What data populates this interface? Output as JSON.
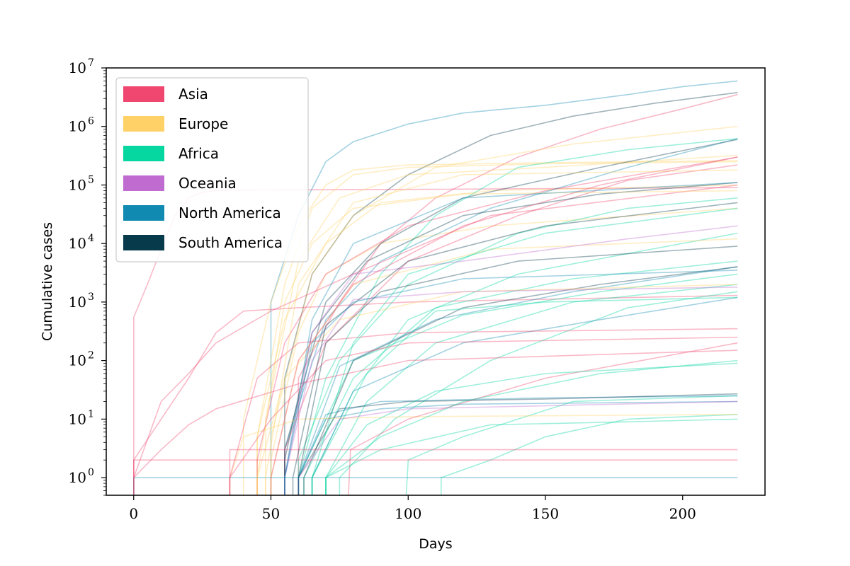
{
  "chart_data": {
    "type": "line",
    "title": "",
    "xlabel": "Days",
    "ylabel": "Cumulative cases",
    "xlim": [
      -10,
      230
    ],
    "ylim": [
      0.5,
      10000000
    ],
    "yscale": "log",
    "x_ticks": [
      {
        "value": 0,
        "label": "0"
      },
      {
        "value": 50,
        "label": "50"
      },
      {
        "value": 100,
        "label": "100"
      },
      {
        "value": 150,
        "label": "150"
      },
      {
        "value": 200,
        "label": "200"
      }
    ],
    "y_ticks": [
      {
        "value": 1,
        "base": "10",
        "exp": "0"
      },
      {
        "value": 10,
        "base": "10",
        "exp": "1"
      },
      {
        "value": 100,
        "base": "10",
        "exp": "2"
      },
      {
        "value": 1000,
        "base": "10",
        "exp": "3"
      },
      {
        "value": 10000,
        "base": "10",
        "exp": "4"
      },
      {
        "value": 100000,
        "base": "10",
        "exp": "5"
      },
      {
        "value": 1000000,
        "base": "10",
        "exp": "6"
      },
      {
        "value": 10000000,
        "base": "10",
        "exp": "7"
      }
    ],
    "grid": false,
    "legend_position": "top-left",
    "legend": [
      {
        "name": "Asia",
        "color": "#ef476f"
      },
      {
        "name": "Europe",
        "color": "#ffd166"
      },
      {
        "name": "Africa",
        "color": "#06d6a0"
      },
      {
        "name": "Oceania",
        "color": "#c06bd0"
      },
      {
        "name": "North America",
        "color": "#118ab2"
      },
      {
        "name": "South America",
        "color": "#073b4c"
      }
    ],
    "series": [
      {
        "continent": "North America",
        "x": [
          50,
          60,
          70,
          80,
          100,
          120,
          150,
          180,
          200,
          220
        ],
        "y": [
          1000,
          30000,
          250000,
          550000,
          1100000,
          1700000,
          2300000,
          3500000,
          4800000,
          6000000
        ]
      },
      {
        "continent": "South America",
        "x": [
          55,
          65,
          80,
          100,
          130,
          160,
          190,
          220
        ],
        "y": [
          50,
          3000,
          30000,
          150000,
          700000,
          1500000,
          2500000,
          3800000
        ]
      },
      {
        "continent": "Asia",
        "x": [
          60,
          75,
          90,
          110,
          140,
          170,
          200,
          220
        ],
        "y": [
          50,
          1000,
          10000,
          60000,
          300000,
          900000,
          2000000,
          3500000
        ]
      },
      {
        "continent": "Asia",
        "x": [
          0,
          5,
          10,
          15,
          20,
          25,
          30,
          45,
          100,
          220
        ],
        "y": [
          550,
          2000,
          8000,
          30000,
          60000,
          75000,
          80000,
          82000,
          84000,
          90000
        ]
      },
      {
        "continent": "Europe",
        "x": [
          40,
          50,
          60,
          70,
          80,
          100,
          150,
          220
        ],
        "y": [
          10,
          1000,
          20000,
          100000,
          180000,
          220000,
          240000,
          260000
        ]
      },
      {
        "continent": "Europe",
        "x": [
          45,
          55,
          65,
          80,
          100,
          150,
          220
        ],
        "y": [
          5,
          2000,
          40000,
          150000,
          200000,
          230000,
          250000
        ]
      },
      {
        "continent": "Europe",
        "x": [
          48,
          60,
          75,
          100,
          150,
          220
        ],
        "y": [
          10,
          5000,
          60000,
          150000,
          200000,
          320000
        ]
      },
      {
        "continent": "Europe",
        "x": [
          50,
          65,
          80,
          110,
          160,
          220
        ],
        "y": [
          5,
          3000,
          30000,
          200000,
          500000,
          1000000
        ]
      },
      {
        "continent": "Europe",
        "x": [
          45,
          55,
          70,
          90,
          130,
          220
        ],
        "y": [
          5,
          500,
          10000,
          50000,
          80000,
          100000
        ]
      },
      {
        "continent": "Europe",
        "x": [
          50,
          60,
          70,
          90,
          130,
          220
        ],
        "y": [
          2,
          300,
          3000,
          10000,
          20000,
          40000
        ]
      },
      {
        "continent": "Asia",
        "x": [
          45,
          55,
          70,
          100,
          150,
          220
        ],
        "y": [
          2,
          200,
          3000,
          20000,
          80000,
          300000
        ]
      },
      {
        "continent": "South America",
        "x": [
          55,
          70,
          90,
          120,
          170,
          220
        ],
        "y": [
          3,
          1000,
          10000,
          60000,
          200000,
          600000
        ]
      },
      {
        "continent": "North America",
        "x": [
          55,
          70,
          90,
          130,
          180,
          220
        ],
        "y": [
          3,
          500,
          5000,
          40000,
          200000,
          620000
        ]
      },
      {
        "continent": "Africa",
        "x": [
          60,
          70,
          90,
          110,
          140,
          180,
          220
        ],
        "y": [
          1,
          50,
          3000,
          30000,
          200000,
          400000,
          620000
        ]
      },
      {
        "continent": "Asia",
        "x": [
          55,
          70,
          100,
          140,
          180,
          220
        ],
        "y": [
          3,
          200,
          5000,
          30000,
          120000,
          220000
        ]
      },
      {
        "continent": "South America",
        "x": [
          55,
          65,
          85,
          120,
          170,
          220
        ],
        "y": [
          2,
          300,
          5000,
          30000,
          70000,
          110000
        ]
      },
      {
        "continent": "Asia",
        "x": [
          0,
          10,
          20,
          30,
          50,
          80,
          130,
          220
        ],
        "y": [
          1,
          20,
          60,
          200,
          700,
          3000,
          30000,
          100000
        ]
      },
      {
        "continent": "Asia",
        "x": [
          0,
          10,
          20,
          30,
          40,
          60,
          100,
          220
        ],
        "y": [
          2,
          10,
          50,
          300,
          700,
          800,
          1000,
          1300
        ]
      },
      {
        "continent": "Africa",
        "x": [
          60,
          75,
          100,
          140,
          180,
          220
        ],
        "y": [
          2,
          100,
          2000,
          15000,
          40000,
          60000
        ]
      },
      {
        "continent": "Africa",
        "x": [
          65,
          80,
          100,
          140,
          220
        ],
        "y": [
          1,
          30,
          500,
          3000,
          15000
        ]
      },
      {
        "continent": "Africa",
        "x": [
          62,
          80,
          110,
          160,
          220
        ],
        "y": [
          1,
          50,
          800,
          2500,
          5000
        ]
      },
      {
        "continent": "Africa",
        "x": [
          70,
          85,
          110,
          160,
          220
        ],
        "y": [
          1,
          20,
          200,
          1000,
          2000
        ]
      },
      {
        "continent": "Africa",
        "x": [
          75,
          95,
          130,
          180,
          220
        ],
        "y": [
          1,
          10,
          100,
          800,
          1500
        ]
      },
      {
        "continent": "Africa",
        "x": [
          60,
          80,
          120,
          170,
          220
        ],
        "y": [
          1,
          100,
          600,
          1500,
          3000
        ]
      },
      {
        "continent": "Africa",
        "x": [
          112,
          112,
          130,
          150,
          180,
          220
        ],
        "y": [
          0.3,
          1,
          2,
          5,
          10,
          12
        ]
      },
      {
        "continent": "Africa",
        "x": [
          99,
          100,
          120,
          140,
          160,
          220
        ],
        "y": [
          0.3,
          2,
          5,
          10,
          20,
          25
        ]
      },
      {
        "continent": "North America",
        "x": [
          60,
          70,
          90,
          120,
          220
        ],
        "y": [
          1,
          10,
          15,
          18,
          20
        ]
      },
      {
        "continent": "North America",
        "x": [
          60,
          70,
          90,
          150,
          220
        ],
        "y": [
          1,
          12,
          20,
          23,
          25
        ]
      },
      {
        "continent": "South America",
        "x": [
          60,
          75,
          100,
          150,
          220
        ],
        "y": [
          1,
          15,
          20,
          22,
          27
        ]
      },
      {
        "continent": "North America",
        "x": [
          65,
          80,
          120,
          170,
          220
        ],
        "y": [
          1,
          30,
          200,
          500,
          1200
        ]
      },
      {
        "continent": "North America",
        "x": [
          60,
          75,
          110,
          160,
          220
        ],
        "y": [
          1,
          80,
          500,
          1500,
          4000
        ]
      },
      {
        "continent": "South America",
        "x": [
          62,
          80,
          120,
          170,
          220
        ],
        "y": [
          1,
          100,
          800,
          2000,
          4000
        ]
      },
      {
        "continent": "Europe",
        "x": [
          35,
          40,
          60,
          100,
          220
        ],
        "y": [
          1,
          5,
          10,
          11,
          12
        ]
      },
      {
        "continent": "Europe",
        "x": [
          45,
          55,
          75,
          120,
          220
        ],
        "y": [
          1,
          50,
          500,
          1500,
          2000
        ]
      },
      {
        "continent": "Europe",
        "x": [
          50,
          60,
          80,
          130,
          220
        ],
        "y": [
          1,
          100,
          2000,
          8000,
          12000
        ]
      },
      {
        "continent": "Asia",
        "x": [
          35,
          45,
          60,
          100,
          220
        ],
        "y": [
          1,
          50,
          200,
          300,
          350
        ]
      },
      {
        "continent": "Asia",
        "x": [
          0,
          10,
          20,
          30,
          60,
          100,
          220
        ],
        "y": [
          1,
          3,
          8,
          15,
          40,
          100,
          150
        ]
      },
      {
        "continent": "Asia",
        "x": [
          78,
          79,
          100,
          150,
          220
        ],
        "y": [
          0.3,
          3,
          10,
          50,
          200
        ]
      },
      {
        "continent": "Oceania",
        "x": [
          55,
          65,
          80,
          120,
          180,
          220
        ],
        "y": [
          1,
          300,
          3000,
          5000,
          12000,
          20000
        ]
      },
      {
        "continent": "Oceania",
        "x": [
          55,
          65,
          80,
          120,
          220
        ],
        "y": [
          1,
          100,
          1100,
          1500,
          1800
        ]
      },
      {
        "continent": "Oceania",
        "x": [
          60,
          75,
          100,
          220
        ],
        "y": [
          1,
          10,
          15,
          20
        ]
      },
      {
        "continent": "Africa",
        "x": [
          70,
          90,
          120,
          170,
          220
        ],
        "y": [
          1,
          5,
          20,
          60,
          100
        ]
      },
      {
        "continent": "Africa",
        "x": [
          70,
          90,
          130,
          180,
          220
        ],
        "y": [
          1,
          3,
          8,
          9,
          10
        ]
      },
      {
        "continent": "Asia",
        "x": [
          35,
          50,
          70,
          100,
          220
        ],
        "y": [
          1,
          10,
          100,
          200,
          250
        ]
      },
      {
        "continent": "North America",
        "x": [
          0,
          5,
          20,
          40,
          60,
          220
        ],
        "y": [
          1,
          1,
          1,
          1,
          1,
          1
        ]
      },
      {
        "continent": "Asia",
        "x": [
          0,
          5,
          10,
          20,
          40,
          220
        ],
        "y": [
          2,
          2,
          2,
          2,
          2,
          2
        ]
      },
      {
        "continent": "Asia",
        "x": [
          35,
          50,
          80,
          120,
          220
        ],
        "y": [
          3,
          3,
          3,
          3,
          3
        ]
      },
      {
        "continent": "South America",
        "x": [
          58,
          70,
          100,
          150,
          220
        ],
        "y": [
          1,
          400,
          5000,
          20000,
          50000
        ]
      },
      {
        "continent": "South America",
        "x": [
          60,
          70,
          90,
          140,
          220
        ],
        "y": [
          1,
          200,
          1500,
          5000,
          9000
        ]
      },
      {
        "continent": "Africa",
        "x": [
          65,
          80,
          100,
          150,
          220
        ],
        "y": [
          1,
          200,
          3000,
          15000,
          40000
        ]
      },
      {
        "continent": "Africa",
        "x": [
          65,
          85,
          110,
          150,
          220
        ],
        "y": [
          1,
          60,
          700,
          1000,
          1200
        ]
      },
      {
        "continent": "Europe",
        "x": [
          45,
          55,
          65,
          80,
          120,
          220
        ],
        "y": [
          1,
          1000,
          10000,
          40000,
          70000,
          80000
        ]
      },
      {
        "continent": "Europe",
        "x": [
          48,
          60,
          80,
          120,
          220
        ],
        "y": [
          1,
          2000,
          50000,
          150000,
          180000
        ]
      },
      {
        "continent": "Asia",
        "x": [
          50,
          60,
          80,
          120,
          170,
          220
        ],
        "y": [
          1,
          100,
          2000,
          20000,
          100000,
          300000
        ]
      },
      {
        "continent": "North America",
        "x": [
          55,
          65,
          80,
          120,
          220
        ],
        "y": [
          1,
          200,
          1000,
          2500,
          3500
        ]
      },
      {
        "continent": "Africa",
        "x": [
          70,
          85,
          110,
          150,
          220
        ],
        "y": [
          1,
          8,
          30,
          60,
          90
        ]
      },
      {
        "continent": "North America",
        "x": [
          55,
          65,
          80,
          120,
          220
        ],
        "y": [
          1,
          500,
          10000,
          60000,
          110000
        ]
      }
    ]
  }
}
